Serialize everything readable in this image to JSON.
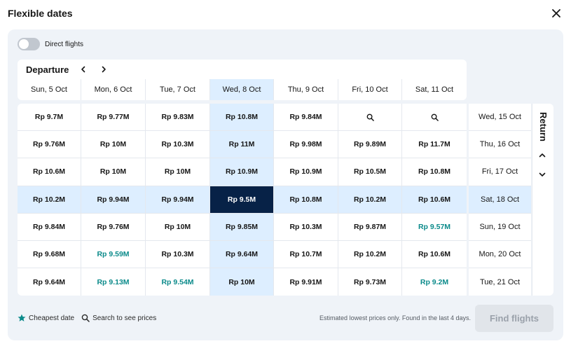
{
  "header": {
    "title": "Flexible dates"
  },
  "toggle": {
    "label": "Direct flights",
    "on": false
  },
  "departure": {
    "title": "Departure",
    "dates": [
      "Sun, 5 Oct",
      "Mon, 6 Oct",
      "Tue, 7 Oct",
      "Wed, 8 Oct",
      "Thu, 9 Oct",
      "Fri, 10 Oct",
      "Sat, 11 Oct"
    ],
    "selected_index": 3
  },
  "return": {
    "title": "Return",
    "dates": [
      "Wed, 15 Oct",
      "Thu, 16 Oct",
      "Fri, 17 Oct",
      "Sat, 18 Oct",
      "Sun, 19 Oct",
      "Mon, 20 Oct",
      "Tue, 21 Oct"
    ],
    "selected_index": 3
  },
  "prices": [
    [
      "Rp 9.7M",
      "Rp 9.77M",
      "Rp 9.83M",
      "Rp 10.8M",
      "Rp 9.84M",
      "search",
      "search"
    ],
    [
      "Rp 9.76M",
      "Rp 10M",
      "Rp 10.3M",
      "Rp 11M",
      "Rp 9.98M",
      "Rp 9.89M",
      "Rp 11.7M"
    ],
    [
      "Rp 10.6M",
      "Rp 10M",
      "Rp 10M",
      "Rp 10.9M",
      "Rp 10.9M",
      "Rp 10.5M",
      "Rp 10.8M"
    ],
    [
      "Rp 10.2M",
      "Rp 9.94M",
      "Rp 9.94M",
      "Rp 9.5M",
      "Rp 10.8M",
      "Rp 10.2M",
      "Rp 10.6M"
    ],
    [
      "Rp 9.84M",
      "Rp 9.76M",
      "Rp 10M",
      "Rp 9.85M",
      "Rp 10.3M",
      "Rp 9.87M",
      "Rp 9.57M"
    ],
    [
      "Rp 9.68M",
      "Rp 9.59M",
      "Rp 10.3M",
      "Rp 9.64M",
      "Rp 10.7M",
      "Rp 10.2M",
      "Rp 10.6M"
    ],
    [
      "Rp 9.64M",
      "Rp 9.13M",
      "Rp 9.54M",
      "Rp 10M",
      "Rp 9.91M",
      "Rp 9.73M",
      "Rp 9.2M"
    ]
  ],
  "cheapest_cells": [
    [
      4,
      6
    ],
    [
      5,
      1
    ],
    [
      6,
      1
    ],
    [
      6,
      2
    ],
    [
      6,
      6
    ]
  ],
  "colors": {
    "cheapest": "#0a8a8a",
    "selected": "#072247",
    "highlight": "#ddeeff"
  },
  "footer": {
    "cheapest_label": "Cheapest date",
    "cheapest_icon": "star-icon",
    "search_label": "Search to see prices",
    "search_icon": "search-icon",
    "note": "Estimated lowest prices only. Found in the last 4 days.",
    "find_button": "Find flights"
  }
}
